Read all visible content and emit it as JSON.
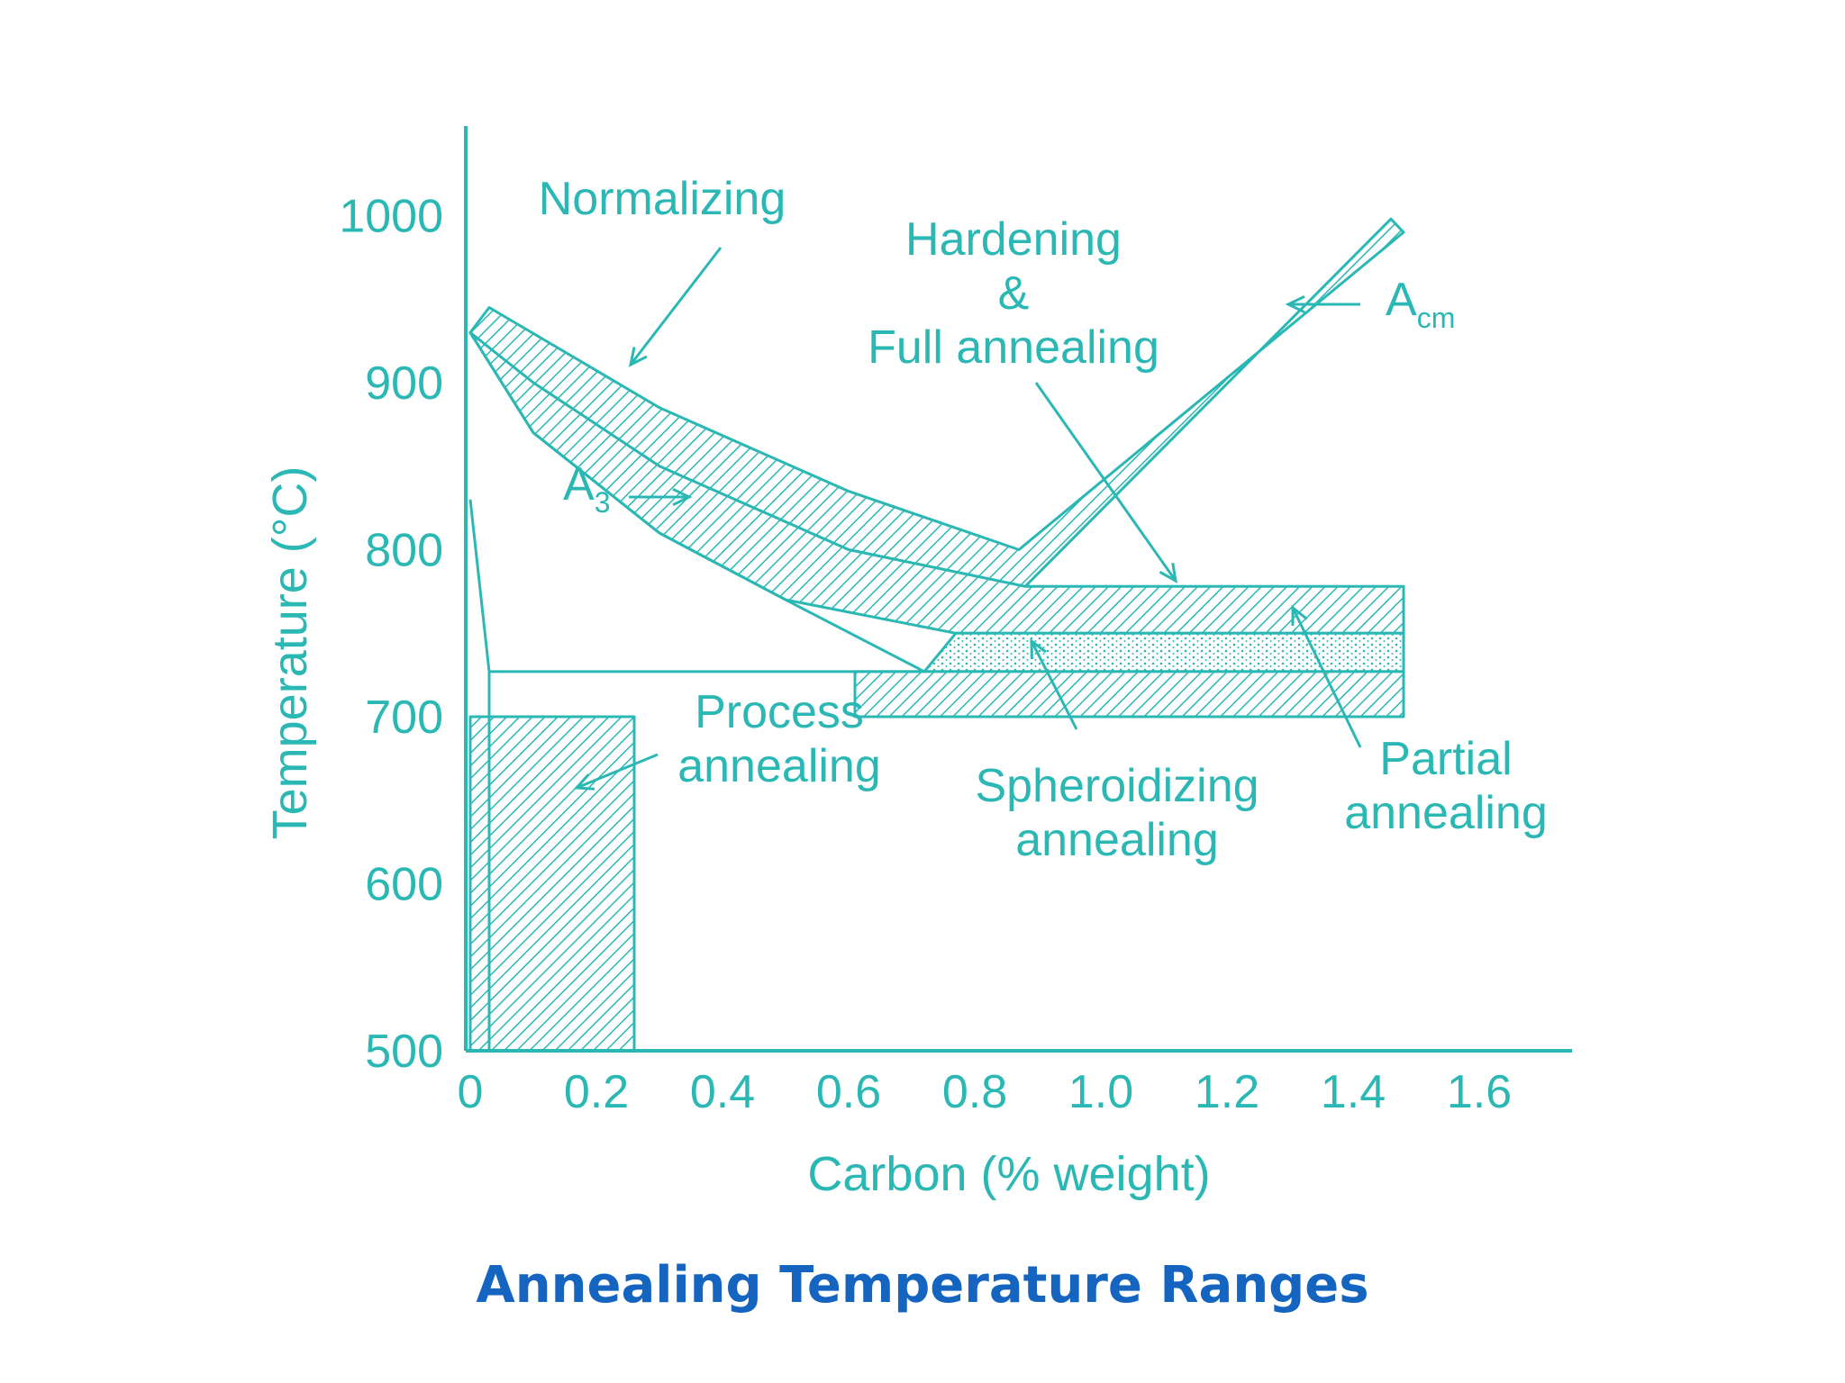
{
  "colors": {
    "ink": "#2bb8b4",
    "caption": "#1565c0",
    "background": "#ffffff"
  },
  "chart_data": {
    "type": "diagram",
    "title": "Annealing Temperature Ranges",
    "xlabel": "Carbon (% weight)",
    "ylabel": "Temperature (°C)",
    "xlim": [
      0,
      1.75
    ],
    "ylim": [
      500,
      1030
    ],
    "x_ticks": [
      "0",
      "0.2",
      "0.4",
      "0.6",
      "0.8",
      "1.0",
      "1.2",
      "1.4",
      "1.6"
    ],
    "y_ticks": [
      "500",
      "600",
      "700",
      "800",
      "900",
      "1000"
    ],
    "lines": {
      "A3": {
        "label": "A",
        "sub": "3",
        "points": [
          [
            0,
            930
          ],
          [
            0.1,
            870
          ],
          [
            0.3,
            810
          ],
          [
            0.5,
            770
          ],
          [
            0.72,
            727
          ]
        ]
      },
      "Acm": {
        "label": "A",
        "sub": "cm",
        "points": [
          [
            0.8,
            727
          ],
          [
            1.48,
            990
          ]
        ]
      },
      "lower_critical": {
        "points": [
          [
            0.03,
            727
          ],
          [
            0.72,
            727
          ]
        ]
      }
    },
    "regions": [
      {
        "name": "Normalizing",
        "lines": [
          "Normalizing"
        ],
        "points": [
          [
            0.03,
            945
          ],
          [
            0.3,
            885
          ],
          [
            0.6,
            835
          ],
          [
            0.87,
            800
          ],
          [
            1.48,
            990
          ],
          [
            1.46,
            998
          ],
          [
            0.88,
            778
          ],
          [
            0.6,
            800
          ],
          [
            0.3,
            850
          ],
          [
            0.1,
            900
          ],
          [
            0,
            930
          ]
        ]
      },
      {
        "name": "Hardening & Full annealing",
        "lines": [
          "Hardening",
          "&",
          "Full annealing"
        ],
        "points": [
          [
            0,
            930
          ],
          [
            0.1,
            900
          ],
          [
            0.3,
            850
          ],
          [
            0.6,
            800
          ],
          [
            0.88,
            778
          ],
          [
            1.48,
            778
          ],
          [
            1.48,
            750
          ],
          [
            0.77,
            750
          ],
          [
            0.5,
            770
          ],
          [
            0.3,
            810
          ],
          [
            0.1,
            870
          ]
        ]
      },
      {
        "name": "Partial annealing",
        "lines": [
          "Partial",
          "annealing"
        ],
        "points": [
          [
            0.77,
            750
          ],
          [
            1.48,
            750
          ],
          [
            1.48,
            727
          ],
          [
            0.72,
            727
          ]
        ]
      },
      {
        "name": "Spheroidizing annealing",
        "lines": [
          "Spheroidizing",
          "annealing"
        ],
        "points": [
          [
            0.61,
            727
          ],
          [
            1.48,
            727
          ],
          [
            1.48,
            700
          ],
          [
            0.61,
            700
          ]
        ]
      },
      {
        "name": "Process annealing",
        "lines": [
          "Process",
          "annealing"
        ],
        "points": [
          [
            0,
            700
          ],
          [
            0.26,
            700
          ],
          [
            0.26,
            500
          ],
          [
            0,
            500
          ]
        ]
      }
    ]
  }
}
